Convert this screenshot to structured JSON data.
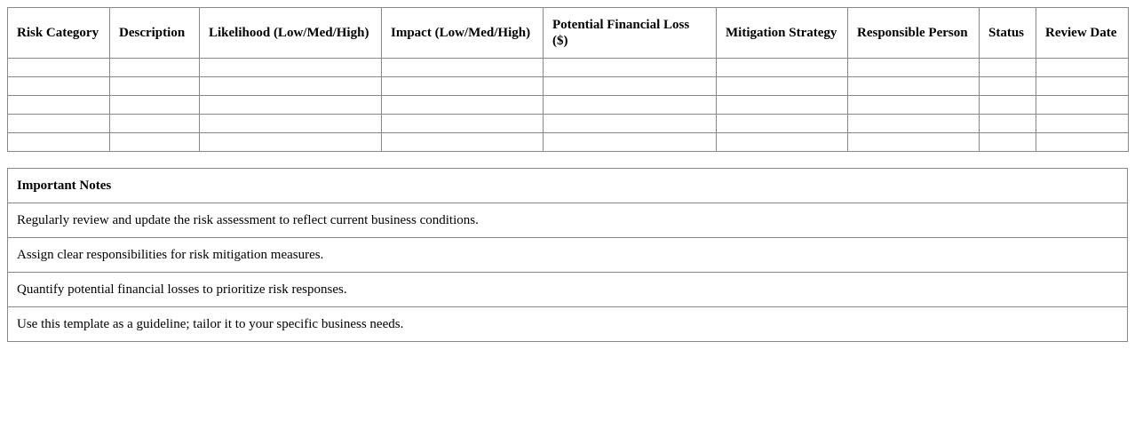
{
  "risk_table": {
    "headers": [
      "Risk Category",
      "Description",
      "Likelihood (Low/Med/High)",
      "Impact (Low/Med/High)",
      "Potential Financial Loss ($)",
      "Mitigation Strategy",
      "Responsible Person",
      "Status",
      "Review Date"
    ],
    "empty_rows": 5
  },
  "notes": {
    "title": "Important Notes",
    "items": [
      "Regularly review and update the risk assessment to reflect current business conditions.",
      "Assign clear responsibilities for risk mitigation measures.",
      "Quantify potential financial losses to prioritize risk responses.",
      "Use this template as a guideline; tailor it to your specific business needs."
    ]
  }
}
